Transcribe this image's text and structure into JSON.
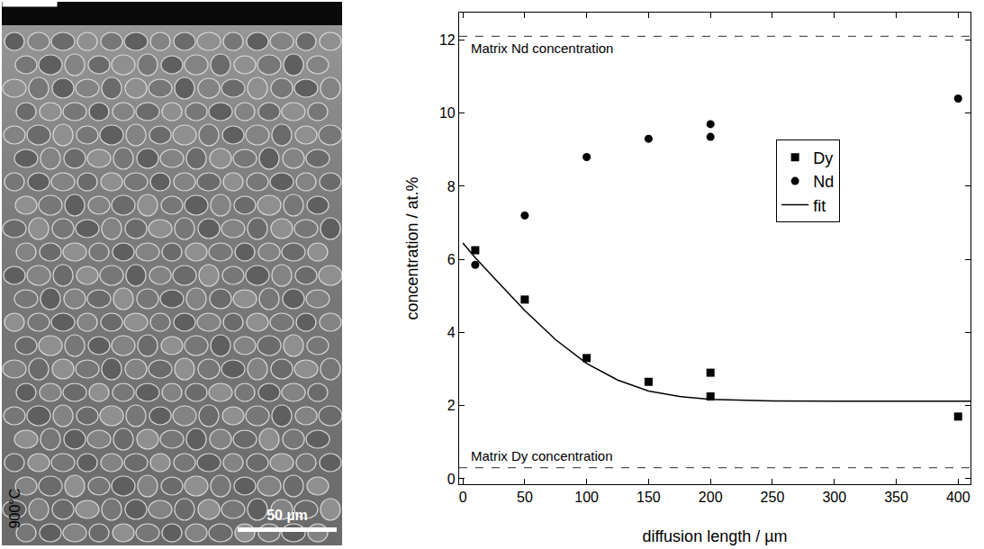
{
  "micrograph": {
    "temperature_label": "900°C",
    "scale_bar": "50 µm"
  },
  "chart_data": {
    "type": "scatter",
    "xlabel": "diffusion length / µm",
    "ylabel": "concentration / at.%",
    "xlim": [
      -3,
      410
    ],
    "xticks": [
      0,
      50,
      100,
      150,
      200,
      250,
      300,
      350,
      400
    ],
    "ylim": [
      -0.15,
      12.75
    ],
    "yticks": [
      0,
      2,
      4,
      6,
      8,
      10,
      12
    ],
    "grid": false,
    "legend": "upper right",
    "series": [
      {
        "name": "Dy",
        "type": "scatter",
        "marker": "square",
        "color": "#000000",
        "x": [
          10,
          50,
          100,
          150,
          200,
          200,
          400
        ],
        "values": [
          6.25,
          4.9,
          3.3,
          2.65,
          2.9,
          2.25,
          1.7
        ]
      },
      {
        "name": "Nd",
        "type": "scatter",
        "marker": "circle",
        "color": "#000000",
        "x": [
          10,
          50,
          100,
          150,
          200,
          200,
          400
        ],
        "values": [
          5.85,
          7.2,
          8.8,
          9.3,
          9.7,
          9.35,
          10.4
        ]
      },
      {
        "name": "fit",
        "type": "line",
        "line_style": "solid",
        "color": "#000000",
        "x": [
          0,
          10,
          25,
          50,
          75,
          100,
          125,
          150,
          175,
          200,
          250,
          300,
          400,
          410
        ],
        "values": [
          6.45,
          6.05,
          5.5,
          4.6,
          3.8,
          3.15,
          2.7,
          2.4,
          2.25,
          2.17,
          2.13,
          2.12,
          2.12,
          2.12
        ]
      }
    ],
    "reference_lines": [
      {
        "value": 12.1,
        "label": "Matrix Nd concentration",
        "line_style": "dash",
        "color": "#555555"
      },
      {
        "value": 0.3,
        "label": "Matrix Dy concentration",
        "line_style": "dash",
        "color": "#555555"
      }
    ]
  }
}
